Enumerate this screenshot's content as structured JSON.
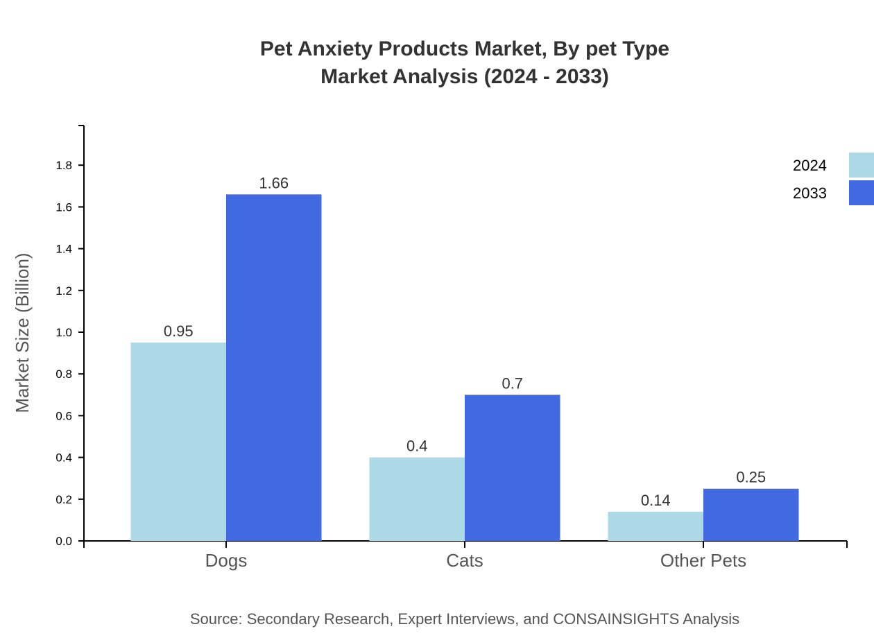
{
  "chart_data": {
    "type": "bar",
    "title": "Pet Anxiety Products Market, By pet Type",
    "subtitle": "Market Analysis (2024 - 2033)",
    "ylabel": "Market Size (Billion)",
    "xlabel": "",
    "categories": [
      "Dogs",
      "Cats",
      "Other Pets"
    ],
    "series": [
      {
        "name": "2024",
        "values": [
          0.95,
          0.4,
          0.14
        ],
        "color": "#add8e6"
      },
      {
        "name": "2033",
        "values": [
          1.66,
          0.7,
          0.25
        ],
        "color": "#4169e1"
      }
    ],
    "ylim": [
      0,
      1.99
    ],
    "yticks": [
      "0.0",
      "0.2",
      "0.4",
      "0.6",
      "0.8",
      "1.0",
      "1.2",
      "1.4",
      "1.6",
      "1.8"
    ],
    "grid": false,
    "legend_position": "top-right",
    "source": "Source: Secondary Research, Expert Interviews, and CONSAINSIGHTS Analysis"
  }
}
